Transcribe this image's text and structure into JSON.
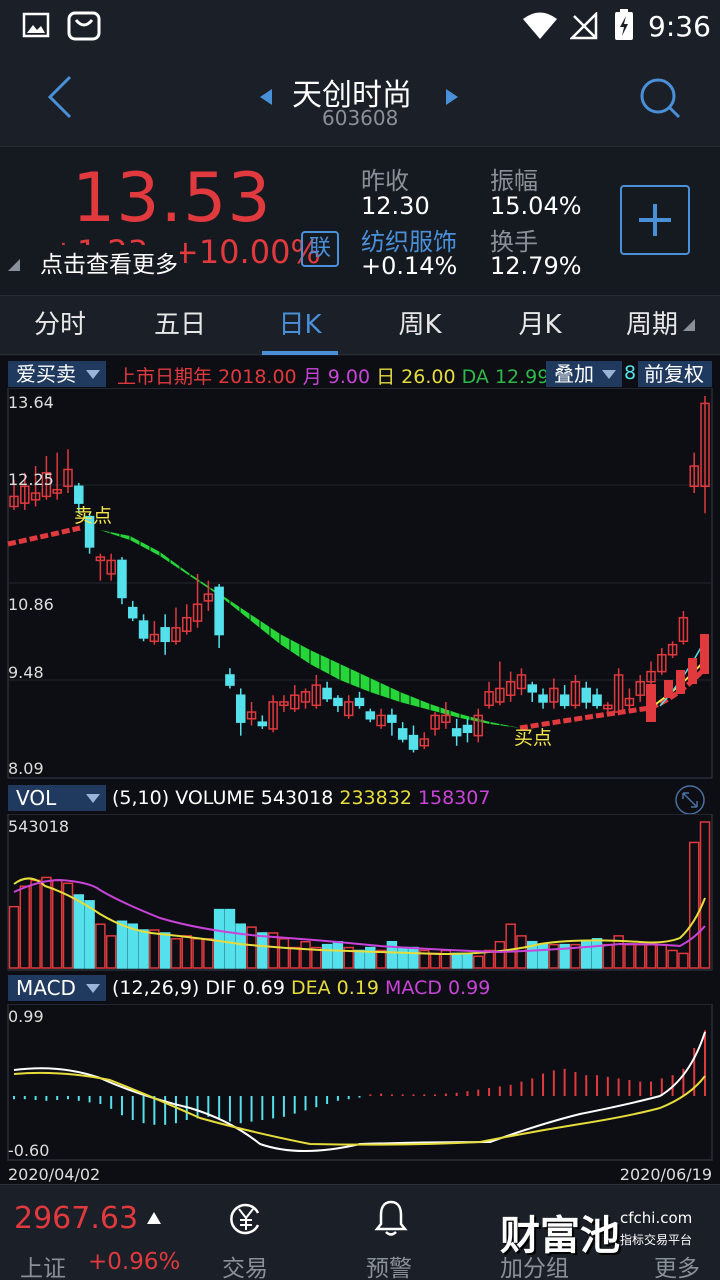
{
  "status_bar": {
    "time": "9:36"
  },
  "header": {
    "stock_name": "天创时尚",
    "stock_code": "603608"
  },
  "quote": {
    "price": "13.53",
    "change": "+1.23",
    "change_pct": "+10.00%",
    "link_badge": "联",
    "hint": "点击查看更多",
    "prev_close_label": "昨收",
    "prev_close": "12.30",
    "amplitude_label": "振幅",
    "amplitude": "15.04%",
    "sector": "纺织服饰",
    "sector_change": "+0.14%",
    "turnover_label": "换手",
    "turnover": "12.79%"
  },
  "tabs": [
    "分时",
    "五日",
    "日K",
    "周K",
    "月K",
    "周期"
  ],
  "active_tab": 2,
  "indicator_bar": {
    "dropdown": "爱买卖",
    "listed_label": "上市日期年",
    "year": "2018.00",
    "month_label": "月",
    "month": "9.00",
    "day_label": "日",
    "day": "26.00",
    "da_label": "DA",
    "da": "12.99",
    "overlay": "叠加",
    "overlay_tail": "8",
    "adjust": "前复权"
  },
  "kline": {
    "y_labels": [
      "13.64",
      "12.25",
      "10.86",
      "9.48",
      "8.09"
    ],
    "sell_label": "卖点",
    "buy_label": "买点"
  },
  "volume": {
    "dropdown": "VOL",
    "params": "(5,10)",
    "volume_label": "VOLUME",
    "volume_value": "543018",
    "ma5_value": "233832",
    "ma10_value": "158307",
    "max_label": "543018"
  },
  "macd": {
    "dropdown": "MACD",
    "params": "(12,26,9)",
    "dif_label": "DIF",
    "dif_value": "0.69",
    "dea_label": "DEA",
    "dea_value": "0.19",
    "macd_label": "MACD",
    "macd_value": "0.99",
    "top_label": "0.99",
    "bottom_label": "-0.60",
    "start_date": "2020/04/02",
    "end_date": "2020/06/19"
  },
  "bottom_nav": {
    "index_value": "2967.63",
    "index_name": "上证",
    "index_change": "+0.96%",
    "trade_label": "交易",
    "alert_label": "预警",
    "watchlist_label": "加分组",
    "more_label": "更多",
    "watermark_brand": "财富池",
    "watermark_domain": "cfchi.com",
    "watermark_tagline": "指标交易平台"
  },
  "colors": {
    "up": "#e0393e",
    "down": "#54e1ec",
    "ma5": "#e6dc3c",
    "ma10": "#c844d8",
    "accent": "#4a90d9"
  }
}
